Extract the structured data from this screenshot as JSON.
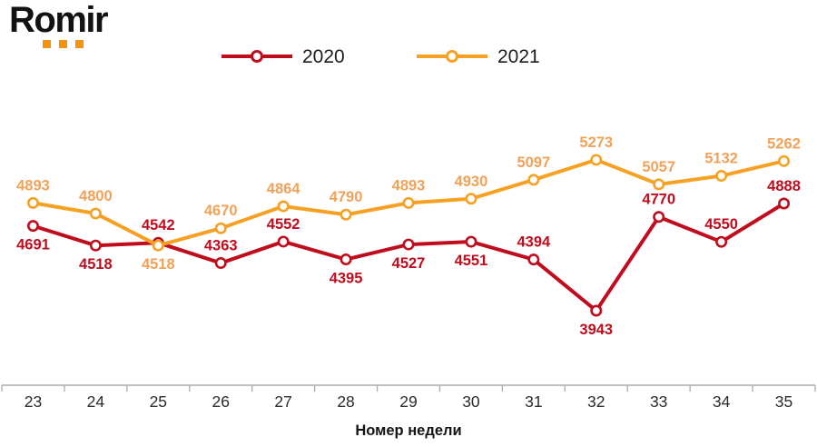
{
  "logo": {
    "text": "Romir",
    "dot_color": "#F4930E"
  },
  "legend": [
    {
      "label": "2020",
      "color": "#C00D1E"
    },
    {
      "label": "2021",
      "color": "#F6A124"
    }
  ],
  "chart_data": {
    "type": "line",
    "xlabel": "Номер недели",
    "x": [
      23,
      24,
      25,
      26,
      27,
      28,
      29,
      30,
      31,
      32,
      33,
      34,
      35
    ],
    "ylim": [
      3286,
      5641
    ],
    "grid": false,
    "legend_position": "top",
    "axis_color": "#ABABAB",
    "tick_label_color": "#2b2b2b",
    "series": [
      {
        "name": "2020",
        "color": "#C00D1E",
        "label_color": "#C00D1E",
        "values": [
          4691,
          4518,
          4542,
          4363,
          4552,
          4395,
          4527,
          4551,
          4394,
          3943,
          4770,
          4550,
          4888
        ],
        "label_pos": [
          "below",
          "below",
          "above",
          "above",
          "above",
          "below",
          "below",
          "below",
          "above",
          "below",
          "above",
          "above",
          "above"
        ]
      },
      {
        "name": "2021",
        "color": "#F6A124",
        "label_color": "#F1A258",
        "values": [
          4893,
          4800,
          4518,
          4670,
          4864,
          4790,
          4893,
          4930,
          5097,
          5273,
          5057,
          5132,
          5262
        ],
        "label_pos": [
          "above",
          "above",
          "below",
          "above",
          "above",
          "above",
          "above",
          "above",
          "above",
          "above",
          "above",
          "above",
          "above"
        ]
      }
    ]
  }
}
